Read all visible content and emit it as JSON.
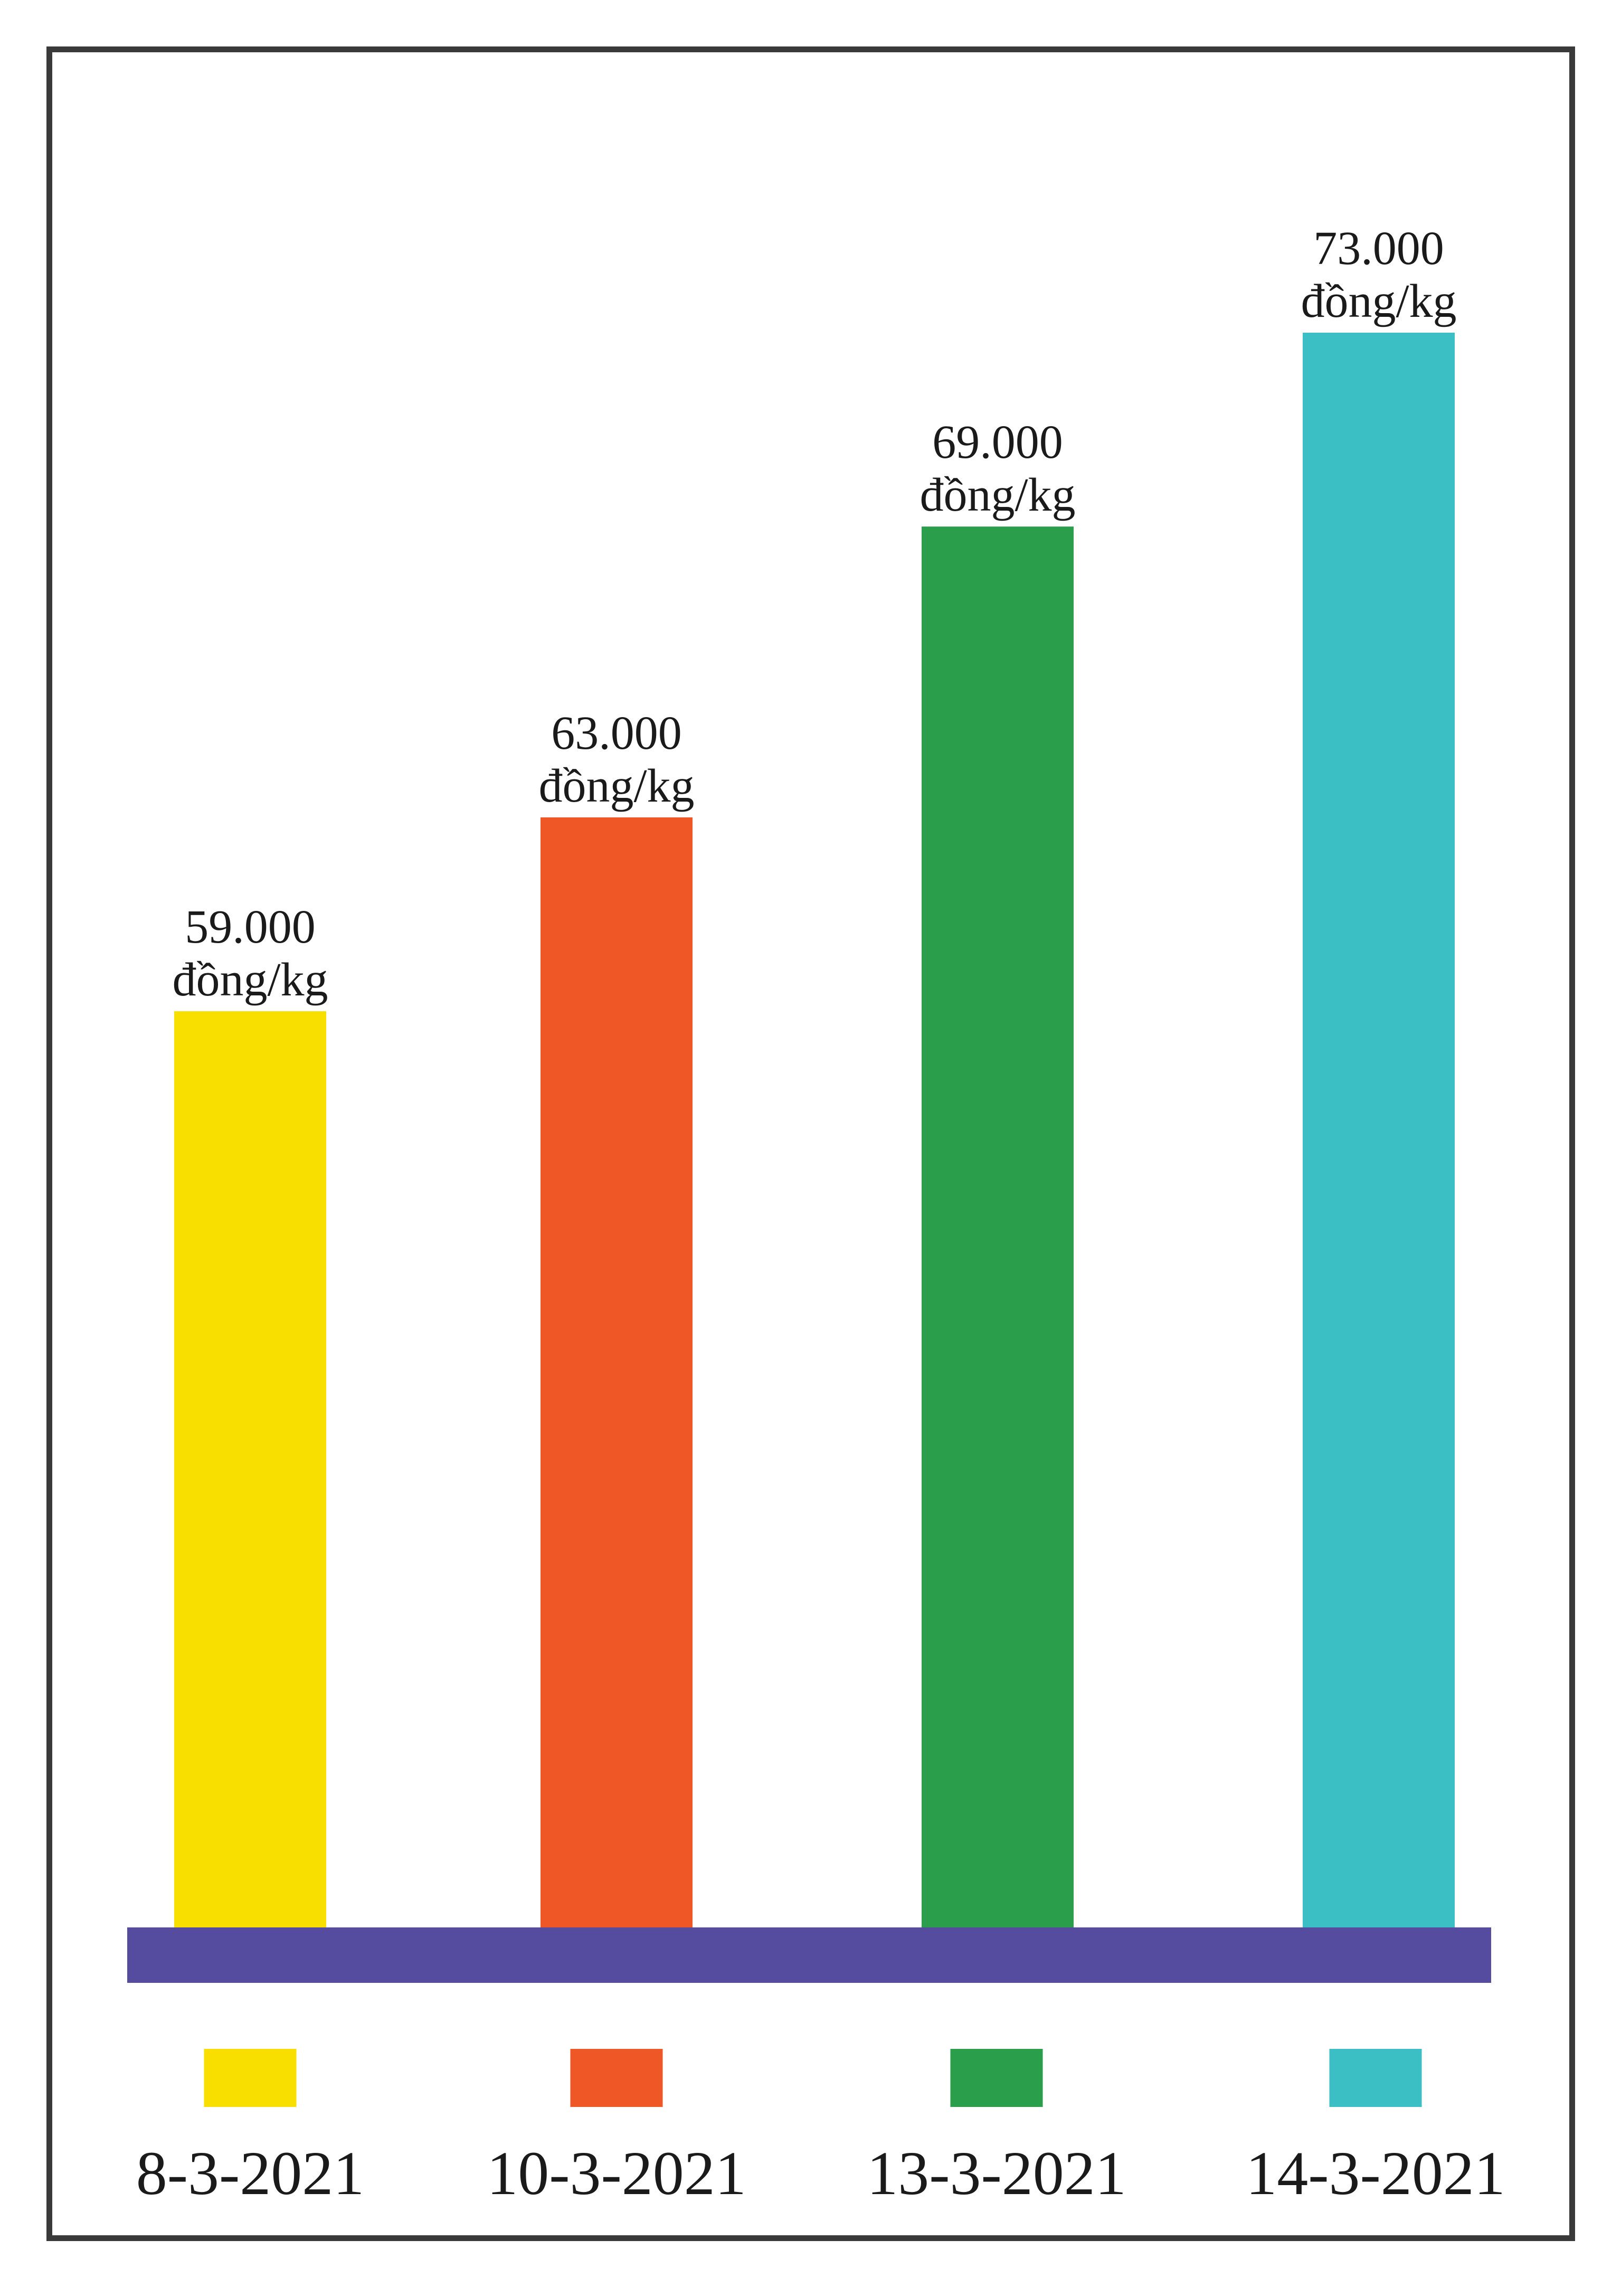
{
  "chart_data": {
    "type": "bar",
    "categories": [
      "8-3-2021",
      "10-3-2021",
      "13-3-2021",
      "14-3-2021"
    ],
    "values": [
      59000,
      63000,
      69000,
      73000
    ],
    "value_labels": [
      {
        "number": "59.000",
        "unit": "đồng/kg"
      },
      {
        "number": "63.000",
        "unit": "đồng/kg"
      },
      {
        "number": "69.000",
        "unit": "đồng/kg"
      },
      {
        "number": "73.000",
        "unit": "đồng/kg"
      }
    ],
    "colors": [
      "#f9df00",
      "#ef5727",
      "#2a9e4a",
      "#3bbfc4"
    ],
    "baseline_color": "#554b9f",
    "frame_color": "#3a3a3a",
    "title": "",
    "xlabel": "",
    "ylabel": "",
    "y_axis_visible": false,
    "grid": false,
    "legend_position": "bottom"
  }
}
